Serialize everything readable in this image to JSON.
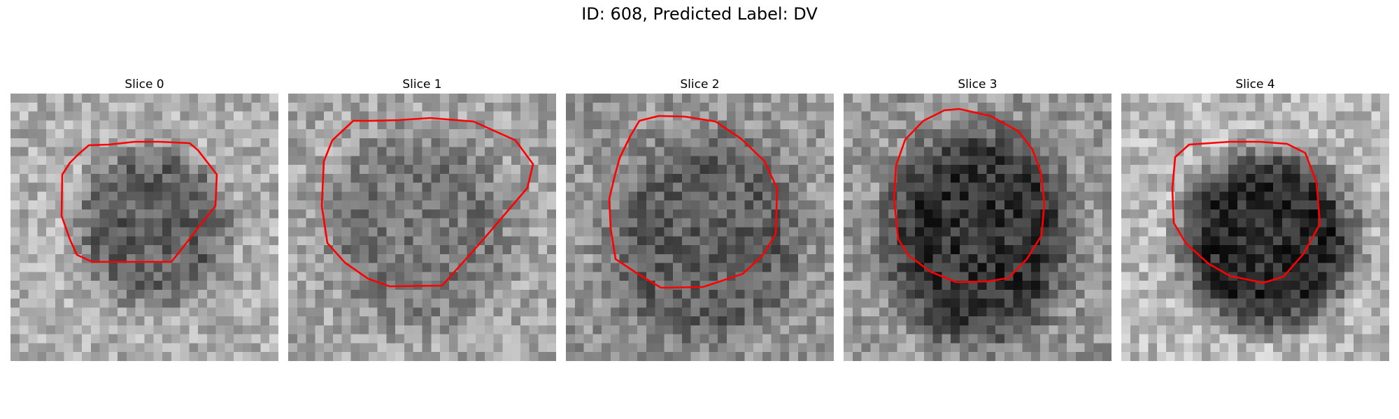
{
  "figure": {
    "title": "ID: 608, Predicted Label: DV"
  },
  "panels": [
    {
      "title": "Slice 0"
    },
    {
      "title": "Slice 1"
    },
    {
      "title": "Slice 2"
    },
    {
      "title": "Slice 3"
    },
    {
      "title": "Slice 4"
    }
  ],
  "contour_color": "#ff0000",
  "colormap": "grayscale"
}
